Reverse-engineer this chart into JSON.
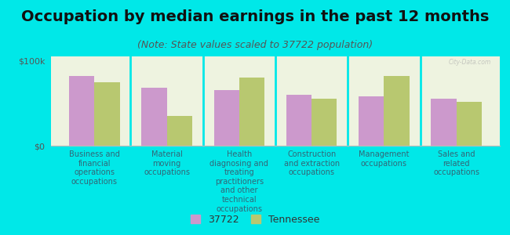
{
  "title": "Occupation by median earnings in the past 12 months",
  "subtitle": "(Note: State values scaled to 37722 population)",
  "background_color": "#00e8e8",
  "plot_bg_color": "#eef3e0",
  "categories": [
    "Business and\nfinancial\noperations\noccupations",
    "Material\nmoving\noccupations",
    "Health\ndiagnosing and\ntreating\npractitioners\nand other\ntechnical\noccupations",
    "Construction\nand extraction\noccupations",
    "Management\noccupations",
    "Sales and\nrelated\noccupations"
  ],
  "values_37722": [
    82000,
    68000,
    65000,
    60000,
    58000,
    55000
  ],
  "values_tennessee": [
    75000,
    35000,
    80000,
    55000,
    82000,
    52000
  ],
  "color_37722": "#cc99cc",
  "color_tennessee": "#b8c870",
  "ylim": [
    0,
    105000
  ],
  "yticks": [
    0,
    100000
  ],
  "ytick_labels": [
    "$0",
    "$100k"
  ],
  "legend_37722": "37722",
  "legend_tennessee": "Tennessee",
  "bar_width": 0.35,
  "title_fontsize": 14,
  "subtitle_fontsize": 9,
  "label_fontsize": 7,
  "legend_fontsize": 9,
  "watermark": "City-Data.com",
  "divider_color": "#00e8e8",
  "axis_color": "#bbbbbb",
  "label_color": "#336677",
  "ytick_color": "#555555"
}
